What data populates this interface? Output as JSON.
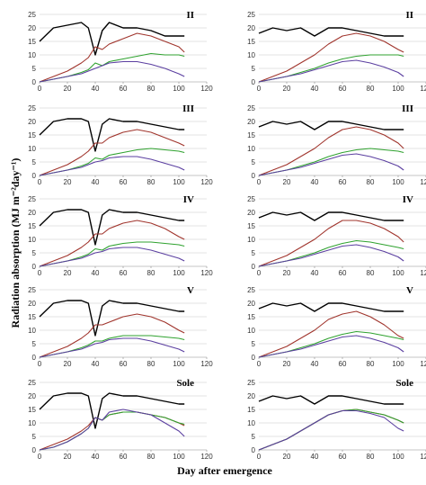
{
  "ylabel": "Radiation absorption (MJ m⁻²day⁻¹)",
  "xlabel": "Day after emergence",
  "colors": {
    "series1": "#000000",
    "series2": "#a0342c",
    "series3": "#2fa22f",
    "series4": "#5b3fa0",
    "grid": "#c8c8c8",
    "axis": "#8c8c8c"
  },
  "chart_data": [
    {
      "type": "line",
      "label": "II",
      "panel": "left-1",
      "xlim": [
        0,
        120
      ],
      "ylim": [
        0,
        25
      ],
      "x": [
        0,
        10,
        20,
        30,
        35,
        40,
        45,
        50,
        60,
        70,
        80,
        90,
        100,
        104
      ],
      "series": [
        {
          "values": [
            15,
            20,
            21,
            22,
            20,
            10,
            19,
            22,
            20,
            20,
            19,
            17,
            17,
            17
          ]
        },
        {
          "values": [
            0,
            2,
            4,
            7,
            9,
            13,
            12,
            14,
            16,
            18,
            17,
            15,
            13,
            11
          ]
        },
        {
          "values": [
            0,
            1,
            2,
            3.5,
            4.5,
            7,
            6,
            7.5,
            8.5,
            9.5,
            10.5,
            10,
            10,
            9.5
          ]
        },
        {
          "values": [
            0,
            1,
            2,
            3,
            4,
            5,
            6,
            7,
            7.5,
            7.5,
            6.5,
            5,
            3,
            2
          ]
        }
      ]
    },
    {
      "type": "line",
      "label": "II",
      "panel": "right-1",
      "xlim": [
        0,
        120
      ],
      "ylim": [
        0,
        25
      ],
      "x": [
        0,
        10,
        20,
        30,
        40,
        50,
        60,
        70,
        80,
        90,
        100,
        104
      ],
      "series": [
        {
          "values": [
            18,
            20,
            19,
            20,
            17,
            20,
            20,
            19,
            18,
            17,
            17,
            17
          ]
        },
        {
          "values": [
            0,
            2,
            4,
            7,
            10,
            14,
            17,
            18,
            17,
            15,
            12,
            11
          ]
        },
        {
          "values": [
            0,
            1,
            2,
            3.5,
            5,
            7,
            8.5,
            9.5,
            10,
            10,
            10,
            9.5
          ]
        },
        {
          "values": [
            0,
            1,
            2,
            3,
            4.5,
            6,
            7.5,
            8,
            7,
            5.5,
            3.5,
            2
          ]
        }
      ]
    },
    {
      "type": "line",
      "label": "III",
      "panel": "left-2",
      "xlim": [
        0,
        120
      ],
      "ylim": [
        0,
        25
      ],
      "x": [
        0,
        10,
        20,
        30,
        35,
        40,
        45,
        50,
        60,
        70,
        80,
        90,
        100,
        104
      ],
      "series": [
        {
          "values": [
            15,
            20,
            21,
            21,
            20,
            9,
            19,
            21,
            20,
            20,
            19,
            18,
            17,
            17
          ]
        },
        {
          "values": [
            0,
            2,
            4,
            7,
            9,
            12,
            12,
            14,
            16,
            17,
            16,
            14,
            12,
            11
          ]
        },
        {
          "values": [
            0,
            1,
            2,
            3.5,
            4.5,
            6.5,
            6,
            7.5,
            8.5,
            9.5,
            10,
            9.5,
            9,
            8.5
          ]
        },
        {
          "values": [
            0,
            1,
            2,
            3,
            4,
            5,
            5.5,
            6.5,
            7,
            7,
            6,
            4.5,
            3,
            2
          ]
        }
      ]
    },
    {
      "type": "line",
      "label": "III",
      "panel": "right-2",
      "xlim": [
        0,
        120
      ],
      "ylim": [
        0,
        25
      ],
      "x": [
        0,
        10,
        20,
        30,
        40,
        50,
        60,
        70,
        80,
        90,
        100,
        104
      ],
      "series": [
        {
          "values": [
            18,
            20,
            19,
            20,
            17,
            20,
            20,
            19,
            18,
            17,
            17,
            17
          ]
        },
        {
          "values": [
            0,
            2,
            4,
            7,
            10,
            14,
            17,
            18,
            17,
            15,
            12,
            10
          ]
        },
        {
          "values": [
            0,
            1,
            2,
            3.5,
            5,
            7,
            8.5,
            9.5,
            10,
            9.5,
            9,
            8.5
          ]
        },
        {
          "values": [
            0,
            1,
            2,
            3,
            4.5,
            6,
            7.5,
            8,
            7,
            5.5,
            3.5,
            2
          ]
        }
      ]
    },
    {
      "type": "line",
      "label": "IV",
      "panel": "left-3",
      "xlim": [
        0,
        120
      ],
      "ylim": [
        0,
        25
      ],
      "x": [
        0,
        10,
        20,
        30,
        35,
        40,
        45,
        50,
        60,
        70,
        80,
        90,
        100,
        104
      ],
      "series": [
        {
          "values": [
            15,
            20,
            21,
            21,
            20,
            8,
            19,
            21,
            20,
            20,
            19,
            18,
            17,
            17
          ]
        },
        {
          "values": [
            0,
            2,
            4,
            7,
            9,
            12,
            12,
            14,
            16,
            17,
            16,
            14,
            11,
            10
          ]
        },
        {
          "values": [
            0,
            1,
            2,
            3.5,
            4.5,
            6.5,
            6,
            7.5,
            8.5,
            9,
            9,
            8.5,
            8,
            7.5
          ]
        },
        {
          "values": [
            0,
            1,
            2,
            3,
            4,
            5,
            5.5,
            6.5,
            7,
            7,
            6,
            4.5,
            3,
            2
          ]
        }
      ]
    },
    {
      "type": "line",
      "label": "IV",
      "panel": "right-3",
      "xlim": [
        0,
        120
      ],
      "ylim": [
        0,
        25
      ],
      "x": [
        0,
        10,
        20,
        30,
        40,
        50,
        60,
        70,
        80,
        90,
        100,
        104
      ],
      "series": [
        {
          "values": [
            18,
            20,
            19,
            20,
            17,
            20,
            20,
            19,
            18,
            17,
            17,
            17
          ]
        },
        {
          "values": [
            0,
            2,
            4,
            7,
            10,
            14,
            17,
            17,
            16,
            14,
            11,
            9
          ]
        },
        {
          "values": [
            0,
            1,
            2,
            3.5,
            5,
            7,
            8.5,
            9.5,
            9,
            8,
            7,
            6.5
          ]
        },
        {
          "values": [
            0,
            1,
            2,
            3,
            4.5,
            6,
            7.5,
            8,
            7,
            5.5,
            3.5,
            2
          ]
        }
      ]
    },
    {
      "type": "line",
      "label": "V",
      "panel": "left-4",
      "xlim": [
        0,
        120
      ],
      "ylim": [
        0,
        25
      ],
      "x": [
        0,
        10,
        20,
        30,
        35,
        40,
        45,
        50,
        60,
        70,
        80,
        90,
        100,
        104
      ],
      "series": [
        {
          "values": [
            15,
            20,
            21,
            21,
            20,
            8,
            19,
            21,
            20,
            20,
            19,
            18,
            17,
            17
          ]
        },
        {
          "values": [
            0,
            2,
            4,
            7,
            9,
            12,
            12,
            13,
            15,
            16,
            15,
            13,
            10,
            9
          ]
        },
        {
          "values": [
            0,
            1,
            2,
            3.5,
            4.5,
            6,
            6,
            7,
            8,
            8,
            8,
            7.5,
            7,
            6.5
          ]
        },
        {
          "values": [
            0,
            1,
            2,
            3,
            4,
            5,
            5.5,
            6.5,
            7,
            7,
            6,
            4.5,
            3,
            2
          ]
        }
      ]
    },
    {
      "type": "line",
      "label": "V",
      "panel": "right-4",
      "xlim": [
        0,
        120
      ],
      "ylim": [
        0,
        25
      ],
      "x": [
        0,
        10,
        20,
        30,
        40,
        50,
        60,
        70,
        80,
        90,
        100,
        104
      ],
      "series": [
        {
          "values": [
            18,
            20,
            19,
            20,
            17,
            20,
            20,
            19,
            18,
            17,
            17,
            17
          ]
        },
        {
          "values": [
            0,
            2,
            4,
            7,
            10,
            14,
            16,
            17,
            15,
            12,
            8,
            7
          ]
        },
        {
          "values": [
            0,
            1,
            2,
            3.5,
            5,
            7,
            8.5,
            9.5,
            9,
            8,
            7,
            6.5
          ]
        },
        {
          "values": [
            0,
            1,
            2,
            3,
            4.5,
            6,
            7.5,
            8,
            7,
            5.5,
            3.5,
            2
          ]
        }
      ]
    },
    {
      "type": "line",
      "label": "Sole",
      "panel": "left-5",
      "xlim": [
        0,
        120
      ],
      "ylim": [
        0,
        25
      ],
      "x": [
        0,
        10,
        20,
        30,
        35,
        40,
        45,
        50,
        60,
        70,
        80,
        90,
        100,
        104
      ],
      "series": [
        {
          "values": [
            15,
            20,
            21,
            21,
            20,
            8,
            19,
            21,
            20,
            20,
            19,
            18,
            17,
            17
          ]
        },
        {
          "values": [
            0,
            2,
            4,
            7,
            9,
            12,
            11,
            13,
            14,
            14,
            13,
            12,
            10,
            9
          ]
        },
        {
          "values": [
            0,
            1,
            3,
            6,
            8,
            12,
            11,
            13,
            14,
            14,
            13,
            12,
            10,
            9.5
          ]
        },
        {
          "values": [
            0,
            1,
            3,
            6,
            8,
            12,
            11,
            14,
            15,
            14,
            13,
            10,
            7,
            5
          ]
        }
      ]
    },
    {
      "type": "line",
      "label": "Sole",
      "panel": "right-5",
      "xlim": [
        0,
        120
      ],
      "ylim": [
        0,
        25
      ],
      "x": [
        0,
        10,
        20,
        30,
        40,
        50,
        60,
        70,
        80,
        90,
        100,
        104
      ],
      "series": [
        {
          "values": [
            18,
            20,
            19,
            20,
            17,
            20,
            20,
            19,
            18,
            17,
            17,
            17
          ]
        },
        {
          "values": [
            0,
            2,
            4,
            7,
            10,
            13,
            14.5,
            15,
            14,
            13,
            11,
            10
          ]
        },
        {
          "values": [
            0,
            2,
            4,
            7,
            10,
            13,
            14.5,
            15,
            14,
            13,
            11,
            10
          ]
        },
        {
          "values": [
            0,
            2,
            4,
            7,
            10,
            13,
            14.5,
            14.5,
            13.5,
            12,
            8,
            7
          ]
        }
      ]
    }
  ]
}
